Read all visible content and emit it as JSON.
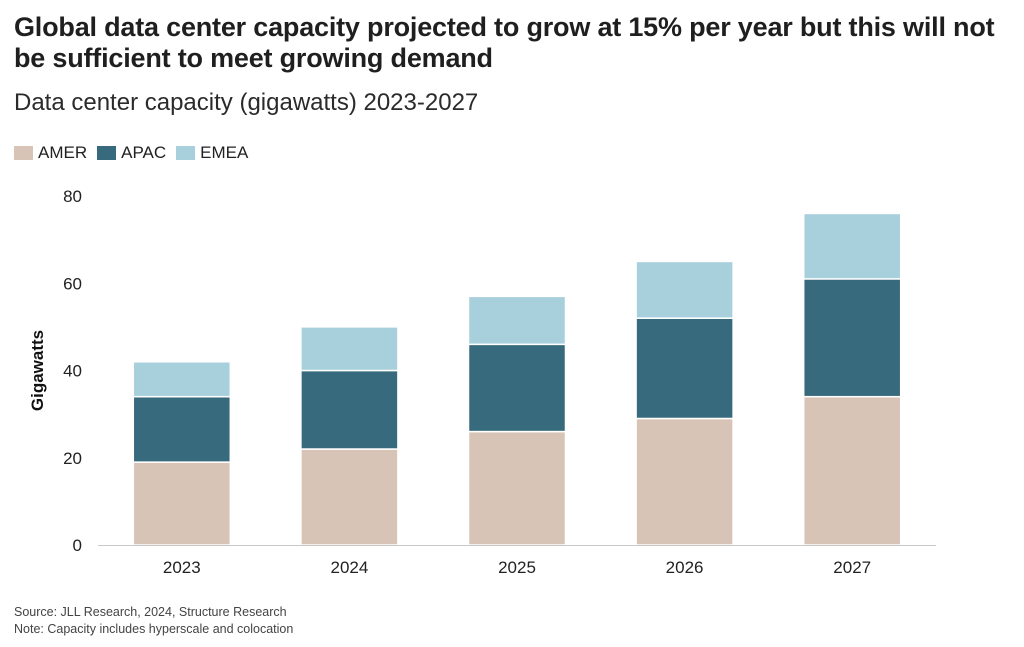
{
  "title": "Global data center capacity projected to grow at 15% per year but this will not be sufficient to meet growing demand",
  "subtitle": "Data center capacity (gigawatts) 2023-2027",
  "footer": {
    "source": "Source: JLL Research, 2024, Structure Research",
    "note": "Note: Capacity includes hyperscale and colocation"
  },
  "chart_data": {
    "type": "bar",
    "stacked": true,
    "title": "Global data center capacity projected to grow at 15% per year but this will not be sufficient to meet growing demand",
    "subtitle": "Data center capacity (gigawatts) 2023-2027",
    "xlabel": "",
    "ylabel": "Gigawatts",
    "ylim": [
      0,
      80
    ],
    "yticks": [
      0,
      20,
      40,
      60,
      80
    ],
    "grid": false,
    "legend_position": "top-left",
    "categories": [
      "2023",
      "2024",
      "2025",
      "2026",
      "2027"
    ],
    "series": [
      {
        "name": "AMER",
        "color": "#d8c4b6",
        "values": [
          19,
          22,
          26,
          29,
          34
        ]
      },
      {
        "name": "APAC",
        "color": "#376a7c",
        "values": [
          15,
          18,
          20,
          23,
          27
        ]
      },
      {
        "name": "EMEA",
        "color": "#a8cfdc",
        "values": [
          8,
          10,
          11,
          13,
          15
        ]
      }
    ]
  }
}
